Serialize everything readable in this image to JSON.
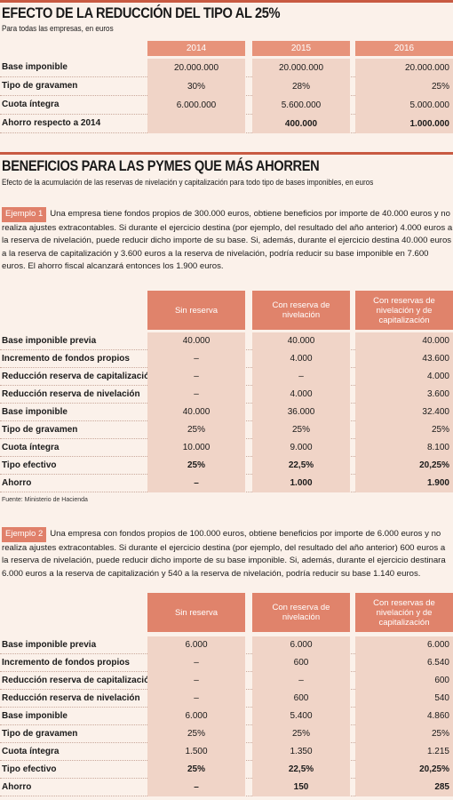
{
  "section1": {
    "title": "EFECTO DE LA REDUCCIÓN DEL TIPO AL 25%",
    "subtitle": "Para todas las empresas, en euros",
    "years": [
      "2014",
      "2015",
      "2016"
    ],
    "rows": [
      {
        "label": "Base imponible",
        "values": [
          "20.000.000",
          "20.000.000",
          "20.000.000"
        ],
        "bold": false
      },
      {
        "label": "Tipo de gravamen",
        "values": [
          "30%",
          "28%",
          "25%"
        ],
        "bold": false
      },
      {
        "label": "Cuota íntegra",
        "values": [
          "6.000.000",
          "5.600.000",
          "5.000.000"
        ],
        "bold": false
      },
      {
        "label": "Ahorro respecto a 2014",
        "values": [
          "",
          "400.000",
          "1.000.000"
        ],
        "bold": true
      }
    ]
  },
  "section2": {
    "title": "BENEFICIOS PARA LAS PYMES QUE MÁS AHORREN",
    "subtitle": "Efecto de la acumulación de las reservas de nivelación y capitalización para todo tipo de bases imponibles, en euros",
    "headers": [
      "Sin reserva",
      "Con reserva de nivelación",
      "Con reservas de nivelación y de capitalización"
    ],
    "example1": {
      "tag": "Ejemplo 1",
      "text": "Una empresa tiene fondos propios de 300.000 euros, obtiene beneficios por importe de 40.000 euros y no realiza ajustes extracontables. Si durante el ejercicio destina (por ejemplo, del resultado del año anterior) 4.000 euros a la reserva de nivelación, puede reducir dicho importe de su base. Si, además, durante el ejercicio destina 40.000 euros a la reserva de capitalización y 3.600 euros a la reserva de nivelación, podría reducir su base imponible en 7.600 euros. El ahorro fiscal alcanzará entonces los 1.900 euros.",
      "rows": [
        {
          "label": "Base imponible previa",
          "values": [
            "40.000",
            "40.000",
            "40.000"
          ],
          "bold": false
        },
        {
          "label": "Incremento de fondos propios",
          "values": [
            "–",
            "4.000",
            "43.600"
          ],
          "bold": false
        },
        {
          "label": "Reducción reserva de capitalización",
          "values": [
            "–",
            "–",
            "4.000"
          ],
          "bold": false
        },
        {
          "label": "Reducción reserva de nivelación",
          "values": [
            "–",
            "4.000",
            "3.600"
          ],
          "bold": false
        },
        {
          "label": "Base imponible",
          "values": [
            "40.000",
            "36.000",
            "32.400"
          ],
          "bold": false
        },
        {
          "label": "Tipo de gravamen",
          "values": [
            "25%",
            "25%",
            "25%"
          ],
          "bold": false
        },
        {
          "label": "Cuota íntegra",
          "values": [
            "10.000",
            "9.000",
            "8.100"
          ],
          "bold": false
        },
        {
          "label": "Tipo efectivo",
          "values": [
            "25%",
            "22,5%",
            "20,25%"
          ],
          "bold": true
        },
        {
          "label": "Ahorro",
          "values": [
            "–",
            "1.000",
            "1.900"
          ],
          "bold": true
        }
      ],
      "source": "Fuente: Ministerio de Hacienda"
    },
    "example2": {
      "tag": "Ejemplo 2",
      "text": "Una empresa con fondos propios de 100.000 euros, obtiene beneficios por importe de 6.000 euros y no realiza ajustes extracontables. Si durante el ejercicio destina (por ejemplo, del resultado del año anterior) 600 euros a la reserva de nivelación, puede reducir dicho importe de su base imponible. Si, además, durante el ejercicio destinara 6.000 euros a la reserva de capitalización y 540 a la reserva de nivelación, podría reducir su base 1.140 euros.",
      "rows": [
        {
          "label": "Base imponible previa",
          "values": [
            "6.000",
            "6.000",
            "6.000"
          ],
          "bold": false
        },
        {
          "label": "Incremento de fondos propios",
          "values": [
            "–",
            "600",
            "6.540"
          ],
          "bold": false
        },
        {
          "label": "Reducción reserva de capitalización",
          "values": [
            "–",
            "–",
            "600"
          ],
          "bold": false
        },
        {
          "label": "Reducción reserva de nivelación",
          "values": [
            "–",
            "600",
            "540"
          ],
          "bold": false
        },
        {
          "label": "Base imponible",
          "values": [
            "6.000",
            "5.400",
            "4.860"
          ],
          "bold": false
        },
        {
          "label": "Tipo de gravamen",
          "values": [
            "25%",
            "25%",
            "25%"
          ],
          "bold": false
        },
        {
          "label": "Cuota íntegra",
          "values": [
            "1.500",
            "1.350",
            "1.215"
          ],
          "bold": false
        },
        {
          "label": "Tipo efectivo",
          "values": [
            "25%",
            "22,5%",
            "20,25%"
          ],
          "bold": true
        },
        {
          "label": "Ahorro",
          "values": [
            "–",
            "150",
            "285"
          ],
          "bold": true
        }
      ]
    }
  }
}
